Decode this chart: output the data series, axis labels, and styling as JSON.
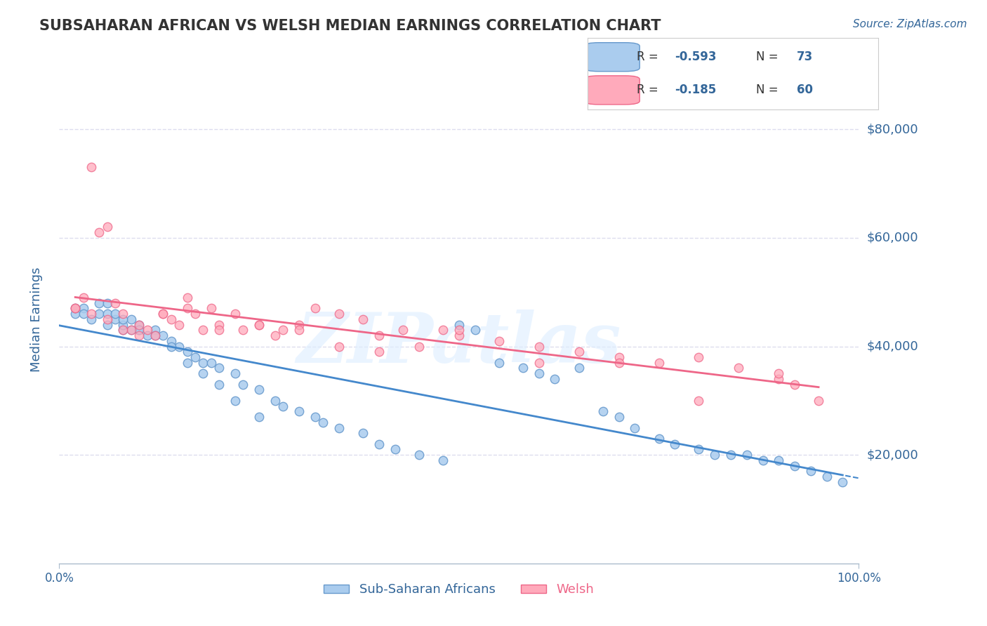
{
  "title": "SUBSAHARAN AFRICAN VS WELSH MEDIAN EARNINGS CORRELATION CHART",
  "source": "Source: ZipAtlas.com",
  "xlabel": "",
  "ylabel": "Median Earnings",
  "xlim": [
    0.0,
    100.0
  ],
  "ylim": [
    0,
    90000
  ],
  "yticks": [
    20000,
    40000,
    60000,
    80000
  ],
  "ytick_labels": [
    "$20,000",
    "$40,000",
    "$60,000",
    "$80,000"
  ],
  "xtick_labels": [
    "0.0%",
    "100.0%"
  ],
  "blue_label": "Sub-Saharan Africans",
  "pink_label": "Welsh",
  "blue_R": "-0.593",
  "blue_N": "73",
  "pink_R": "-0.185",
  "pink_N": "60",
  "blue_color": "#6699CC",
  "pink_color": "#FF99AA",
  "blue_scatter_color": "#AACCEE",
  "pink_scatter_color": "#FFAABB",
  "trend_blue": "#4488CC",
  "trend_pink": "#EE6688",
  "watermark": "ZIPatlas",
  "watermark_color": "#DDEEFF",
  "background_color": "#FFFFFF",
  "grid_color": "#DDDDEE",
  "title_color": "#333333",
  "axis_label_color": "#336699",
  "tick_label_color": "#336699",
  "blue_points_x": [
    2,
    3,
    4,
    5,
    5,
    6,
    6,
    7,
    7,
    8,
    8,
    9,
    9,
    10,
    10,
    11,
    12,
    13,
    14,
    15,
    16,
    17,
    18,
    19,
    20,
    22,
    23,
    25,
    27,
    28,
    30,
    32,
    33,
    35,
    38,
    40,
    42,
    45,
    48,
    50,
    52,
    55,
    58,
    60,
    62,
    65,
    68,
    70,
    72,
    75,
    77,
    80,
    82,
    84,
    86,
    88,
    90,
    92,
    94,
    96,
    98,
    2,
    3,
    6,
    8,
    10,
    12,
    14,
    16,
    18,
    20,
    22,
    25
  ],
  "blue_points_y": [
    46000,
    47000,
    45000,
    46000,
    48000,
    44000,
    46000,
    45000,
    46000,
    43000,
    44000,
    43000,
    45000,
    44000,
    43000,
    42000,
    43000,
    42000,
    41000,
    40000,
    39000,
    38000,
    37000,
    37000,
    36000,
    35000,
    33000,
    32000,
    30000,
    29000,
    28000,
    27000,
    26000,
    25000,
    24000,
    22000,
    21000,
    20000,
    19000,
    44000,
    43000,
    37000,
    36000,
    35000,
    34000,
    36000,
    28000,
    27000,
    25000,
    23000,
    22000,
    21000,
    20000,
    20000,
    20000,
    19000,
    19000,
    18000,
    17000,
    16000,
    15000,
    47000,
    46000,
    48000,
    45000,
    43000,
    42000,
    40000,
    37000,
    35000,
    33000,
    30000,
    27000
  ],
  "pink_points_x": [
    2,
    3,
    4,
    5,
    6,
    7,
    8,
    9,
    10,
    11,
    12,
    13,
    14,
    15,
    16,
    17,
    18,
    19,
    20,
    22,
    23,
    25,
    27,
    28,
    30,
    32,
    35,
    38,
    40,
    43,
    45,
    48,
    50,
    55,
    60,
    65,
    70,
    75,
    80,
    85,
    90,
    92,
    95,
    2,
    4,
    6,
    8,
    10,
    13,
    16,
    20,
    25,
    30,
    35,
    40,
    50,
    60,
    70,
    80,
    90
  ],
  "pink_points_y": [
    47000,
    49000,
    73000,
    61000,
    62000,
    48000,
    46000,
    43000,
    44000,
    43000,
    42000,
    46000,
    45000,
    44000,
    49000,
    46000,
    43000,
    47000,
    44000,
    46000,
    43000,
    44000,
    42000,
    43000,
    44000,
    47000,
    46000,
    45000,
    42000,
    43000,
    40000,
    43000,
    42000,
    41000,
    40000,
    39000,
    38000,
    37000,
    38000,
    36000,
    34000,
    33000,
    30000,
    47000,
    46000,
    45000,
    43000,
    42000,
    46000,
    47000,
    43000,
    44000,
    43000,
    40000,
    39000,
    43000,
    37000,
    37000,
    30000,
    35000
  ]
}
